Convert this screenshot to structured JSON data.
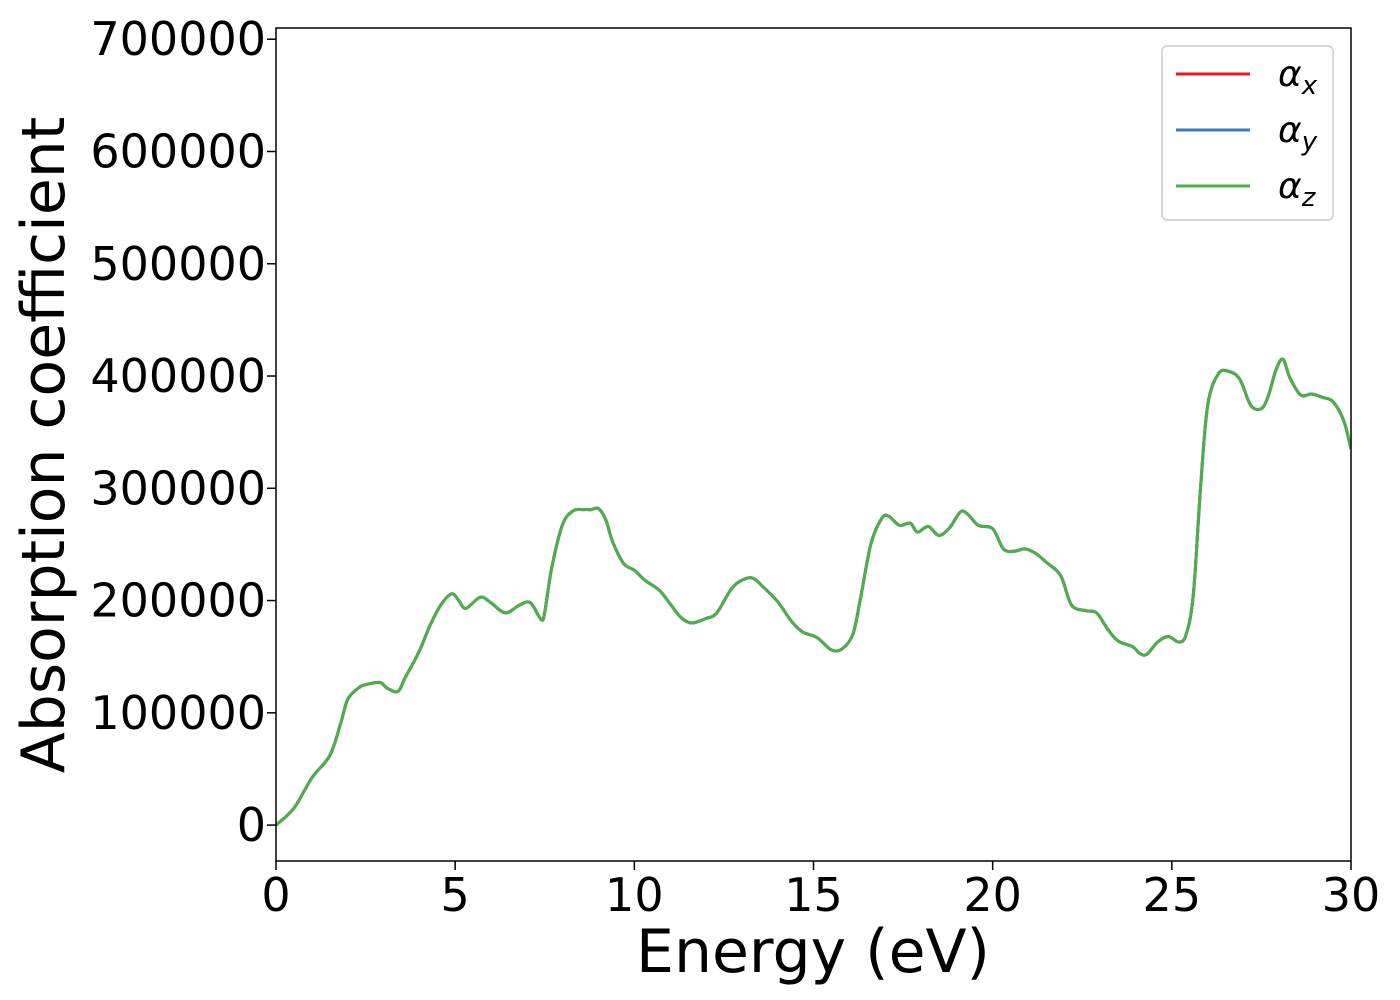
{
  "chart_data": {
    "type": "line",
    "title": "",
    "xlabel": "Energy (eV)",
    "ylabel": "Absorption coefficient",
    "xlim": [
      0,
      30
    ],
    "ylim": [
      -32000,
      710000
    ],
    "xticks": [
      0,
      5,
      10,
      15,
      20,
      25,
      30
    ],
    "yticks": [
      0,
      100000,
      200000,
      300000,
      400000,
      500000,
      600000,
      700000
    ],
    "grid": false,
    "legend_position": "top-right",
    "series": [
      {
        "name": "α",
        "subscript": "x",
        "color": "#e41a1c",
        "x": [
          0,
          0.5,
          1,
          1.5,
          1.8,
          2,
          2.3,
          2.5,
          2.9,
          3.1,
          3.4,
          3.6,
          4,
          4.3,
          4.6,
          4.9,
          5.1,
          5.3,
          5.7,
          6,
          6.4,
          6.8,
          7.1,
          7.4,
          7.5,
          7.7,
          8,
          8.3,
          8.6,
          8.8,
          9,
          9.2,
          9.4,
          9.7,
          10,
          10.3,
          10.7,
          11,
          11.3,
          11.6,
          12,
          12.3,
          12.7,
          13,
          13.3,
          13.6,
          14,
          14.4,
          14.7,
          15.1,
          15.5,
          15.8,
          16.1,
          16.3,
          16.6,
          16.9,
          17.1,
          17.4,
          17.7,
          17.9,
          18.2,
          18.5,
          18.8,
          19.1,
          19.3,
          19.6,
          20,
          20.3,
          20.6,
          20.9,
          21.2,
          21.5,
          21.9,
          22.2,
          22.6,
          22.9,
          23.2,
          23.5,
          23.9,
          24.1,
          24.3,
          24.6,
          24.9,
          25.2,
          25.4,
          25.6,
          25.8,
          26,
          26.3,
          26.6,
          26.9,
          27.2,
          27.5,
          27.7,
          27.9,
          28.1,
          28.3,
          28.6,
          28.9,
          29.2,
          29.5,
          29.8,
          30
        ],
        "y": [
          0,
          15000,
          42000,
          62000,
          90000,
          112000,
          122000,
          125000,
          127000,
          122000,
          119000,
          131000,
          155000,
          178000,
          196000,
          206000,
          200000,
          193000,
          203000,
          198000,
          189000,
          196000,
          198000,
          183000,
          190000,
          230000,
          268000,
          280000,
          281000,
          281000,
          282000,
          272000,
          252000,
          233000,
          227000,
          218000,
          209000,
          197000,
          185000,
          180000,
          184000,
          189000,
          210000,
          218000,
          220000,
          212000,
          199000,
          181000,
          172000,
          167000,
          156000,
          157000,
          170000,
          200000,
          250000,
          273000,
          275000,
          267000,
          269000,
          261000,
          266000,
          258000,
          265000,
          279000,
          277000,
          267000,
          264000,
          246000,
          244000,
          246000,
          242000,
          234000,
          222000,
          196000,
          191000,
          189000,
          175000,
          164000,
          159000,
          153000,
          152000,
          163000,
          168000,
          163000,
          170000,
          205000,
          300000,
          374000,
          402000,
          404000,
          397000,
          374000,
          371000,
          383000,
          405000,
          415000,
          398000,
          383000,
          384000,
          381000,
          377000,
          360000,
          335000
        ]
      },
      {
        "name": "α",
        "subscript": "y",
        "color": "#377eb8",
        "x": [
          0,
          0.5,
          1,
          1.5,
          1.8,
          2,
          2.3,
          2.5,
          2.9,
          3.1,
          3.4,
          3.6,
          4,
          4.3,
          4.6,
          4.9,
          5.1,
          5.3,
          5.7,
          6,
          6.4,
          6.8,
          7.1,
          7.4,
          7.5,
          7.7,
          8,
          8.3,
          8.6,
          8.8,
          9,
          9.2,
          9.4,
          9.7,
          10,
          10.3,
          10.7,
          11,
          11.3,
          11.6,
          12,
          12.3,
          12.7,
          13,
          13.3,
          13.6,
          14,
          14.4,
          14.7,
          15.1,
          15.5,
          15.8,
          16.1,
          16.3,
          16.6,
          16.9,
          17.1,
          17.4,
          17.7,
          17.9,
          18.2,
          18.5,
          18.8,
          19.1,
          19.3,
          19.6,
          20,
          20.3,
          20.6,
          20.9,
          21.2,
          21.5,
          21.9,
          22.2,
          22.6,
          22.9,
          23.2,
          23.5,
          23.9,
          24.1,
          24.3,
          24.6,
          24.9,
          25.2,
          25.4,
          25.6,
          25.8,
          26,
          26.3,
          26.6,
          26.9,
          27.2,
          27.5,
          27.7,
          27.9,
          28.1,
          28.3,
          28.6,
          28.9,
          29.2,
          29.5,
          29.8,
          30
        ],
        "y": [
          0,
          15000,
          42000,
          62000,
          90000,
          112000,
          122000,
          125000,
          127000,
          122000,
          119000,
          131000,
          155000,
          178000,
          196000,
          206000,
          200000,
          193000,
          203000,
          198000,
          189000,
          196000,
          198000,
          183000,
          190000,
          230000,
          268000,
          280000,
          281000,
          281000,
          282000,
          272000,
          252000,
          233000,
          227000,
          218000,
          209000,
          197000,
          185000,
          180000,
          184000,
          189000,
          210000,
          218000,
          220000,
          212000,
          199000,
          181000,
          172000,
          167000,
          156000,
          157000,
          170000,
          200000,
          250000,
          273000,
          275000,
          267000,
          269000,
          261000,
          266000,
          258000,
          265000,
          279000,
          277000,
          267000,
          264000,
          246000,
          244000,
          246000,
          242000,
          234000,
          222000,
          196000,
          191000,
          189000,
          175000,
          164000,
          159000,
          153000,
          152000,
          163000,
          168000,
          163000,
          170000,
          205000,
          300000,
          374000,
          402000,
          404000,
          397000,
          374000,
          371000,
          383000,
          405000,
          415000,
          398000,
          383000,
          384000,
          381000,
          377000,
          360000,
          335000
        ]
      },
      {
        "name": "α",
        "subscript": "z",
        "color": "#4daf4a",
        "x": [
          0,
          0.5,
          1,
          1.5,
          1.8,
          2,
          2.3,
          2.5,
          2.9,
          3.1,
          3.4,
          3.6,
          4,
          4.3,
          4.6,
          4.9,
          5.1,
          5.3,
          5.7,
          6,
          6.4,
          6.8,
          7.1,
          7.4,
          7.5,
          7.7,
          8,
          8.3,
          8.6,
          8.8,
          9,
          9.2,
          9.4,
          9.7,
          10,
          10.3,
          10.7,
          11,
          11.3,
          11.6,
          12,
          12.3,
          12.7,
          13,
          13.3,
          13.6,
          14,
          14.4,
          14.7,
          15.1,
          15.5,
          15.8,
          16.1,
          16.3,
          16.6,
          16.9,
          17.1,
          17.4,
          17.7,
          17.9,
          18.2,
          18.5,
          18.8,
          19.1,
          19.3,
          19.6,
          20,
          20.3,
          20.6,
          20.9,
          21.2,
          21.5,
          21.9,
          22.2,
          22.6,
          22.9,
          23.2,
          23.5,
          23.9,
          24.1,
          24.3,
          24.6,
          24.9,
          25.2,
          25.4,
          25.6,
          25.8,
          26,
          26.3,
          26.6,
          26.9,
          27.2,
          27.5,
          27.7,
          27.9,
          28.1,
          28.3,
          28.6,
          28.9,
          29.2,
          29.5,
          29.8,
          30
        ],
        "y": [
          0,
          15000,
          42000,
          62000,
          90000,
          112000,
          122000,
          125000,
          127000,
          122000,
          119000,
          131000,
          155000,
          178000,
          196000,
          206000,
          200000,
          193000,
          203000,
          198000,
          189000,
          196000,
          198000,
          183000,
          190000,
          230000,
          268000,
          280000,
          281000,
          281000,
          282000,
          272000,
          252000,
          233000,
          227000,
          218000,
          209000,
          197000,
          185000,
          180000,
          184000,
          189000,
          210000,
          218000,
          220000,
          212000,
          199000,
          181000,
          172000,
          167000,
          156000,
          157000,
          170000,
          200000,
          250000,
          273000,
          275000,
          267000,
          269000,
          261000,
          266000,
          258000,
          265000,
          279000,
          277000,
          267000,
          264000,
          246000,
          244000,
          246000,
          242000,
          234000,
          222000,
          196000,
          191000,
          189000,
          175000,
          164000,
          159000,
          153000,
          152000,
          163000,
          168000,
          163000,
          170000,
          205000,
          300000,
          374000,
          402000,
          404000,
          397000,
          374000,
          371000,
          383000,
          405000,
          415000,
          398000,
          383000,
          384000,
          381000,
          377000,
          360000,
          335000
        ]
      }
    ]
  }
}
